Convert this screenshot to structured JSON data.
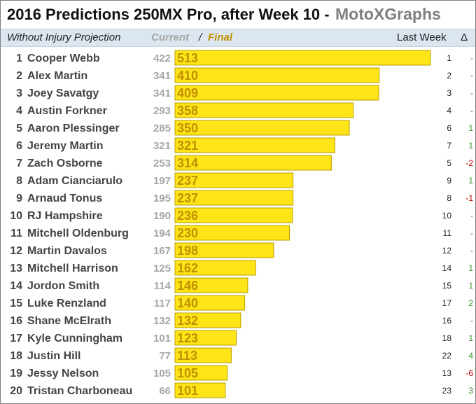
{
  "header": {
    "title": "2016 Predictions 250MX Pro, after Week 10  -",
    "brand": "MotoXGraphs"
  },
  "subheader": {
    "left": "Without Injury Projection",
    "current": "Current",
    "slash": "/",
    "final": "Final",
    "last_week": "Last Week",
    "delta": "Δ"
  },
  "colors": {
    "bar_fill": "#ffe417",
    "bar_stroke": "#b8a000",
    "final_text": "#bf9000",
    "current_text": "#a6a6a6",
    "delta_up": "#3a8f2a",
    "delta_down": "#c00000",
    "subheader_bg": "#dce6f1"
  },
  "chart_data": {
    "type": "bar",
    "orientation": "horizontal",
    "series": [
      {
        "name": "Current",
        "values": [
          422,
          341,
          341,
          293,
          285,
          321,
          253,
          197,
          195,
          190,
          194,
          167,
          125,
          114,
          117,
          132,
          101,
          77,
          105,
          66
        ]
      },
      {
        "name": "Final",
        "values": [
          513,
          410,
          409,
          358,
          350,
          321,
          314,
          237,
          237,
          236,
          230,
          198,
          162,
          146,
          140,
          132,
          123,
          113,
          105,
          101
        ]
      }
    ],
    "rows": [
      {
        "rank": "1",
        "rider": "Cooper Webb",
        "current": "422",
        "final": "513",
        "last_week": "1",
        "delta": "-"
      },
      {
        "rank": "2",
        "rider": "Alex Martin",
        "current": "341",
        "final": "410",
        "last_week": "2",
        "delta": "-"
      },
      {
        "rank": "3",
        "rider": "Joey Savatgy",
        "current": "341",
        "final": "409",
        "last_week": "3",
        "delta": "-"
      },
      {
        "rank": "4",
        "rider": "Austin Forkner",
        "current": "293",
        "final": "358",
        "last_week": "4",
        "delta": "-"
      },
      {
        "rank": "5",
        "rider": "Aaron Plessinger",
        "current": "285",
        "final": "350",
        "last_week": "6",
        "delta": "1"
      },
      {
        "rank": "6",
        "rider": "Jeremy Martin",
        "current": "321",
        "final": "321",
        "last_week": "7",
        "delta": "1"
      },
      {
        "rank": "7",
        "rider": "Zach Osborne",
        "current": "253",
        "final": "314",
        "last_week": "5",
        "delta": "-2"
      },
      {
        "rank": "8",
        "rider": "Adam Cianciarulo",
        "current": "197",
        "final": "237",
        "last_week": "9",
        "delta": "1"
      },
      {
        "rank": "9",
        "rider": "Arnaud Tonus",
        "current": "195",
        "final": "237",
        "last_week": "8",
        "delta": "-1"
      },
      {
        "rank": "10",
        "rider": "RJ Hampshire",
        "current": "190",
        "final": "236",
        "last_week": "10",
        "delta": "-"
      },
      {
        "rank": "11",
        "rider": "Mitchell Oldenburg",
        "current": "194",
        "final": "230",
        "last_week": "11",
        "delta": "-"
      },
      {
        "rank": "12",
        "rider": "Martin Davalos",
        "current": "167",
        "final": "198",
        "last_week": "12",
        "delta": "-"
      },
      {
        "rank": "13",
        "rider": "Mitchell Harrison",
        "current": "125",
        "final": "162",
        "last_week": "14",
        "delta": "1"
      },
      {
        "rank": "14",
        "rider": "Jordon Smith",
        "current": "114",
        "final": "146",
        "last_week": "15",
        "delta": "1"
      },
      {
        "rank": "15",
        "rider": "Luke Renzland",
        "current": "117",
        "final": "140",
        "last_week": "17",
        "delta": "2"
      },
      {
        "rank": "16",
        "rider": "Shane McElrath",
        "current": "132",
        "final": "132",
        "last_week": "16",
        "delta": "-"
      },
      {
        "rank": "17",
        "rider": "Kyle Cunningham",
        "current": "101",
        "final": "123",
        "last_week": "18",
        "delta": "1"
      },
      {
        "rank": "18",
        "rider": "Justin Hill",
        "current": "77",
        "final": "113",
        "last_week": "22",
        "delta": "4"
      },
      {
        "rank": "19",
        "rider": "Jessy Nelson",
        "current": "105",
        "final": "105",
        "last_week": "13",
        "delta": "-6"
      },
      {
        "rank": "20",
        "rider": "Tristan Charboneau",
        "current": "66",
        "final": "101",
        "last_week": "23",
        "delta": "3"
      }
    ],
    "xlim": [
      0,
      513
    ],
    "grid": false,
    "legend": "none"
  }
}
